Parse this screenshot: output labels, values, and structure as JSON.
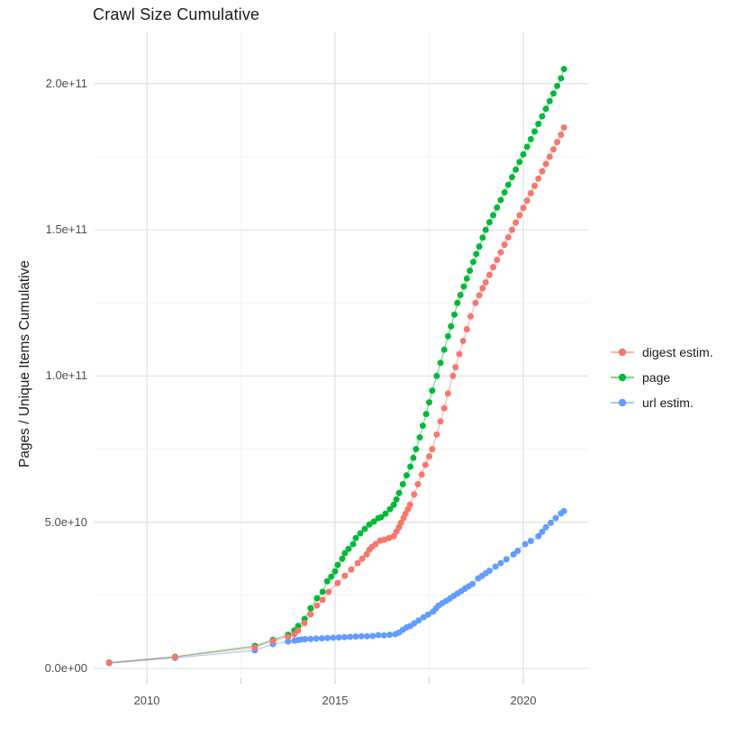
{
  "title": "Crawl Size Cumulative",
  "y_axis": {
    "label": "Pages / Unique Items Cumulative",
    "ticks": [
      {
        "label": "0.0e+00",
        "value": 0
      },
      {
        "label": "5.0e+10",
        "value": 50000000000.0
      },
      {
        "label": "1.0e+11",
        "value": 100000000000.0
      },
      {
        "label": "1.5e+11",
        "value": 150000000000.0
      },
      {
        "label": "2.0e+11",
        "value": 200000000000.0
      }
    ]
  },
  "x_axis": {
    "ticks": [
      {
        "label": "2010",
        "value": 2010
      },
      {
        "label": "2015",
        "value": 2015
      },
      {
        "label": "2020",
        "value": 2020
      }
    ]
  },
  "legend": {
    "items": [
      {
        "label": "digest estim.",
        "color": "#F8766D"
      },
      {
        "label": "page",
        "color": "#00BA38"
      },
      {
        "label": "url estim.",
        "color": "#619CFF"
      }
    ]
  },
  "colors": {
    "grid_major": "#E3E3E3",
    "grid_minor": "#F0F0F0",
    "tick_mark": "#D2D2D2",
    "background": "#FFFFFF"
  },
  "chart_data": {
    "type": "line",
    "title": "Crawl Size Cumulative",
    "xlabel": "",
    "ylabel": "Pages / Unique Items Cumulative",
    "xlim": [
      2008.6,
      2021.7
    ],
    "ylim": [
      0,
      217000000000.0
    ],
    "grid": true,
    "legend_position": "right",
    "series": [
      {
        "name": "url estim.",
        "color": "#619CFF",
        "points": [
          [
            2009.0,
            1800000000.0
          ],
          [
            2010.75,
            3600000000.0
          ],
          [
            2012.87,
            6200000000.0
          ],
          [
            2013.35,
            8300000000.0
          ],
          [
            2013.75,
            9200000000.0
          ],
          [
            2013.92,
            9500000000.0
          ],
          [
            2014.02,
            9700000000.0
          ],
          [
            2014.1,
            9900000000.0
          ],
          [
            2014.2,
            10000000000.0
          ],
          [
            2014.35,
            10100000000.0
          ],
          [
            2014.5,
            10200000000.0
          ],
          [
            2014.65,
            10300000000.0
          ],
          [
            2014.8,
            10400000000.0
          ],
          [
            2014.95,
            10500000000.0
          ],
          [
            2015.1,
            10600000000.0
          ],
          [
            2015.25,
            10700000000.0
          ],
          [
            2015.4,
            10800000000.0
          ],
          [
            2015.55,
            10900000000.0
          ],
          [
            2015.7,
            11000000000.0
          ],
          [
            2015.85,
            11000000000.0
          ],
          [
            2016.0,
            11100000000.0
          ],
          [
            2016.15,
            11400000000.0
          ],
          [
            2016.3,
            11300000000.0
          ],
          [
            2016.45,
            11500000000.0
          ],
          [
            2016.6,
            11700000000.0
          ],
          [
            2016.7,
            12300000000.0
          ],
          [
            2016.8,
            13200000000.0
          ],
          [
            2016.9,
            14000000000.0
          ],
          [
            2017.0,
            14500000000.0
          ],
          [
            2017.1,
            15400000000.0
          ],
          [
            2017.22,
            16400000000.0
          ],
          [
            2017.35,
            17500000000.0
          ],
          [
            2017.47,
            18400000000.0
          ],
          [
            2017.6,
            19400000000.0
          ],
          [
            2017.68,
            20500000000.0
          ],
          [
            2017.75,
            21500000000.0
          ],
          [
            2017.85,
            22300000000.0
          ],
          [
            2017.95,
            23100000000.0
          ],
          [
            2018.05,
            23900000000.0
          ],
          [
            2018.15,
            24800000000.0
          ],
          [
            2018.25,
            25600000000.0
          ],
          [
            2018.35,
            26400000000.0
          ],
          [
            2018.45,
            27300000000.0
          ],
          [
            2018.55,
            28100000000.0
          ],
          [
            2018.65,
            28900000000.0
          ],
          [
            2018.8,
            30800000000.0
          ],
          [
            2018.9,
            31600000000.0
          ],
          [
            2019.0,
            32500000000.0
          ],
          [
            2019.1,
            33400000000.0
          ],
          [
            2019.26,
            34800000000.0
          ],
          [
            2019.4,
            36000000000.0
          ],
          [
            2019.55,
            37300000000.0
          ],
          [
            2019.74,
            39000000000.0
          ],
          [
            2019.85,
            40200000000.0
          ],
          [
            2020.05,
            42500000000.0
          ],
          [
            2020.2,
            43600000000.0
          ],
          [
            2020.4,
            45200000000.0
          ],
          [
            2020.5,
            46700000000.0
          ],
          [
            2020.6,
            48300000000.0
          ],
          [
            2020.73,
            49800000000.0
          ],
          [
            2020.86,
            51400000000.0
          ],
          [
            2021.0,
            53000000000.0
          ],
          [
            2021.08,
            53800000000.0
          ]
        ]
      },
      {
        "name": "page",
        "color": "#00BA38",
        "points": [
          [
            2009.0,
            2000000000.0
          ],
          [
            2010.75,
            4000000000.0
          ],
          [
            2012.87,
            7700000000.0
          ],
          [
            2013.35,
            9800000000.0
          ],
          [
            2013.75,
            11500000000.0
          ],
          [
            2013.92,
            13000000000.0
          ],
          [
            2014.02,
            14500000000.0
          ],
          [
            2014.19,
            16900000000.0
          ],
          [
            2014.35,
            20600000000.0
          ],
          [
            2014.52,
            24000000000.0
          ],
          [
            2014.67,
            26200000000.0
          ],
          [
            2014.79,
            29800000000.0
          ],
          [
            2014.9,
            31400000000.0
          ],
          [
            2015.0,
            33200000000.0
          ],
          [
            2015.07,
            35400000000.0
          ],
          [
            2015.19,
            37500000000.0
          ],
          [
            2015.26,
            39400000000.0
          ],
          [
            2015.36,
            40900000000.0
          ],
          [
            2015.48,
            42500000000.0
          ],
          [
            2015.55,
            44600000000.0
          ],
          [
            2015.67,
            46200000000.0
          ],
          [
            2015.79,
            47700000000.0
          ],
          [
            2015.91,
            49200000000.0
          ],
          [
            2016.03,
            50200000000.0
          ],
          [
            2016.15,
            51400000000.0
          ],
          [
            2016.22,
            51700000000.0
          ],
          [
            2016.34,
            52900000000.0
          ],
          [
            2016.46,
            54500000000.0
          ],
          [
            2016.56,
            56000000000.0
          ],
          [
            2016.63,
            57800000000.0
          ],
          [
            2016.7,
            60000000000.0
          ],
          [
            2016.8,
            63000000000.0
          ],
          [
            2016.9,
            66000000000.0
          ],
          [
            2017.0,
            69000000000.0
          ],
          [
            2017.08,
            72000000000.0
          ],
          [
            2017.15,
            75000000000.0
          ],
          [
            2017.25,
            79000000000.0
          ],
          [
            2017.33,
            83000000000.0
          ],
          [
            2017.42,
            87000000000.0
          ],
          [
            2017.5,
            91000000000.0
          ],
          [
            2017.58,
            95000000000.0
          ],
          [
            2017.7,
            100000000000.0
          ],
          [
            2017.8,
            104500000000.0
          ],
          [
            2017.9,
            109000000000.0
          ],
          [
            2018.0,
            113600000000.0
          ],
          [
            2018.08,
            117000000000.0
          ],
          [
            2018.17,
            121000000000.0
          ],
          [
            2018.25,
            125000000000.0
          ],
          [
            2018.33,
            127700000000.0
          ],
          [
            2018.42,
            130600000000.0
          ],
          [
            2018.5,
            133300000000.0
          ],
          [
            2018.58,
            136000000000.0
          ],
          [
            2018.67,
            139000000000.0
          ],
          [
            2018.75,
            141700000000.0
          ],
          [
            2018.83,
            144300000000.0
          ],
          [
            2018.92,
            147300000000.0
          ],
          [
            2019.0,
            150000000000.0
          ],
          [
            2019.1,
            152600000000.0
          ],
          [
            2019.2,
            155000000000.0
          ],
          [
            2019.3,
            157600000000.0
          ],
          [
            2019.4,
            160200000000.0
          ],
          [
            2019.5,
            162800000000.0
          ],
          [
            2019.6,
            165400000000.0
          ],
          [
            2019.7,
            168000000000.0
          ],
          [
            2019.8,
            170600000000.0
          ],
          [
            2019.9,
            173200000000.0
          ],
          [
            2020.0,
            175800000000.0
          ],
          [
            2020.1,
            178400000000.0
          ],
          [
            2020.2,
            181000000000.0
          ],
          [
            2020.3,
            183600000000.0
          ],
          [
            2020.4,
            186200000000.0
          ],
          [
            2020.5,
            188800000000.0
          ],
          [
            2020.6,
            191400000000.0
          ],
          [
            2020.7,
            194000000000.0
          ],
          [
            2020.8,
            196600000000.0
          ],
          [
            2020.9,
            199200000000.0
          ],
          [
            2021.0,
            201800000000.0
          ],
          [
            2021.08,
            205000000000.0
          ]
        ]
      },
      {
        "name": "digest estim.",
        "color": "#F8766D",
        "points": [
          [
            2009.0,
            1900000000.0
          ],
          [
            2010.75,
            3900000000.0
          ],
          [
            2012.87,
            7200000000.0
          ],
          [
            2013.35,
            9400000000.0
          ],
          [
            2013.75,
            10800000000.0
          ],
          [
            2013.92,
            11700000000.0
          ],
          [
            2014.02,
            13000000000.0
          ],
          [
            2014.19,
            15500000000.0
          ],
          [
            2014.35,
            18500000000.0
          ],
          [
            2014.52,
            21500000000.0
          ],
          [
            2014.67,
            23500000000.0
          ],
          [
            2014.83,
            26200000000.0
          ],
          [
            2015.07,
            29200000000.0
          ],
          [
            2015.26,
            31700000000.0
          ],
          [
            2015.43,
            33800000000.0
          ],
          [
            2015.6,
            36000000000.0
          ],
          [
            2015.72,
            37500000000.0
          ],
          [
            2015.84,
            39000000000.0
          ],
          [
            2015.91,
            40600000000.0
          ],
          [
            2015.98,
            41500000000.0
          ],
          [
            2016.08,
            42500000000.0
          ],
          [
            2016.2,
            43700000000.0
          ],
          [
            2016.31,
            44000000000.0
          ],
          [
            2016.43,
            44600000000.0
          ],
          [
            2016.56,
            45200000000.0
          ],
          [
            2016.63,
            46800000000.0
          ],
          [
            2016.7,
            48300000000.0
          ],
          [
            2016.75,
            49800000000.0
          ],
          [
            2016.82,
            51400000000.0
          ],
          [
            2016.87,
            52900000000.0
          ],
          [
            2016.94,
            54500000000.0
          ],
          [
            2016.99,
            56000000000.0
          ],
          [
            2017.1,
            59500000000.0
          ],
          [
            2017.2,
            63000000000.0
          ],
          [
            2017.3,
            66300000000.0
          ],
          [
            2017.4,
            69600000000.0
          ],
          [
            2017.5,
            72500000000.0
          ],
          [
            2017.58,
            75000000000.0
          ],
          [
            2017.7,
            80000000000.0
          ],
          [
            2017.8,
            84500000000.0
          ],
          [
            2017.9,
            89000000000.0
          ],
          [
            2018.0,
            94000000000.0
          ],
          [
            2018.13,
            100000000000.0
          ],
          [
            2018.2,
            103000000000.0
          ],
          [
            2018.3,
            107500000000.0
          ],
          [
            2018.4,
            112000000000.0
          ],
          [
            2018.5,
            116000000000.0
          ],
          [
            2018.6,
            120400000000.0
          ],
          [
            2018.73,
            125000000000.0
          ],
          [
            2018.83,
            127600000000.0
          ],
          [
            2018.92,
            130000000000.0
          ],
          [
            2019.0,
            132000000000.0
          ],
          [
            2019.1,
            134600000000.0
          ],
          [
            2019.2,
            137200000000.0
          ],
          [
            2019.3,
            139700000000.0
          ],
          [
            2019.4,
            142300000000.0
          ],
          [
            2019.5,
            144900000000.0
          ],
          [
            2019.6,
            147400000000.0
          ],
          [
            2019.7,
            150000000000.0
          ],
          [
            2019.8,
            152500000000.0
          ],
          [
            2019.9,
            155000000000.0
          ],
          [
            2020.0,
            157500000000.0
          ],
          [
            2020.1,
            160000000000.0
          ],
          [
            2020.2,
            162500000000.0
          ],
          [
            2020.3,
            165000000000.0
          ],
          [
            2020.4,
            167500000000.0
          ],
          [
            2020.5,
            170000000000.0
          ],
          [
            2020.6,
            172500000000.0
          ],
          [
            2020.7,
            175000000000.0
          ],
          [
            2020.8,
            177500000000.0
          ],
          [
            2020.9,
            180000000000.0
          ],
          [
            2021.0,
            182500000000.0
          ],
          [
            2021.08,
            185000000000.0
          ]
        ]
      }
    ]
  }
}
